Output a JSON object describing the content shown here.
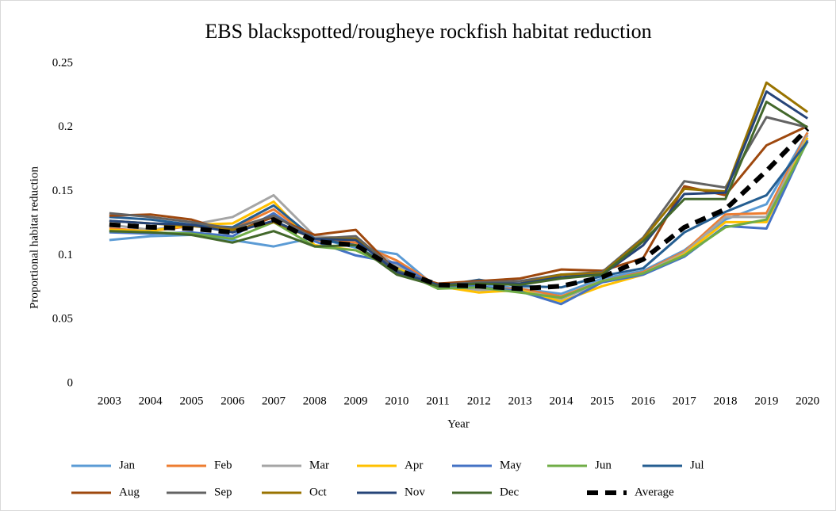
{
  "chart_data": {
    "type": "line",
    "title": "EBS blackspotted/rougheye rockfish habitat reduction",
    "x_label": "Year",
    "y_label": "Proportional habitat reduction",
    "categories": [
      "2003",
      "2004",
      "2005",
      "2006",
      "2007",
      "2008",
      "2009",
      "2010",
      "2011",
      "2012",
      "2013",
      "2014",
      "2015",
      "2016",
      "2017",
      "2018",
      "2019",
      "2020"
    ],
    "ylim": [
      0,
      0.25
    ],
    "yticks": [
      0,
      0.05,
      0.1,
      0.15,
      0.2,
      0.25
    ],
    "grid": false,
    "legend": "bottom",
    "series": [
      {
        "name": "Jan",
        "color": "#5b9bd5",
        "values": [
          0.112,
          0.115,
          0.116,
          0.112,
          0.107,
          0.114,
          0.106,
          0.101,
          0.074,
          0.078,
          0.074,
          0.07,
          0.082,
          0.088,
          0.104,
          0.128,
          0.14,
          0.196
        ]
      },
      {
        "name": "Feb",
        "color": "#ed7d31",
        "values": [
          0.121,
          0.119,
          0.123,
          0.121,
          0.136,
          0.112,
          0.11,
          0.096,
          0.076,
          0.074,
          0.074,
          0.068,
          0.08,
          0.087,
          0.103,
          0.132,
          0.133,
          0.196
        ]
      },
      {
        "name": "Mar",
        "color": "#a5a5a5",
        "values": [
          0.124,
          0.12,
          0.124,
          0.13,
          0.147,
          0.115,
          0.113,
          0.092,
          0.076,
          0.073,
          0.073,
          0.066,
          0.079,
          0.086,
          0.102,
          0.13,
          0.13,
          0.194
        ]
      },
      {
        "name": "Apr",
        "color": "#ffc000",
        "values": [
          0.12,
          0.119,
          0.124,
          0.125,
          0.142,
          0.108,
          0.104,
          0.09,
          0.076,
          0.071,
          0.073,
          0.064,
          0.076,
          0.085,
          0.101,
          0.126,
          0.126,
          0.192
        ]
      },
      {
        "name": "May",
        "color": "#4472c4",
        "values": [
          0.118,
          0.117,
          0.118,
          0.115,
          0.133,
          0.111,
          0.1,
          0.094,
          0.075,
          0.076,
          0.072,
          0.062,
          0.079,
          0.085,
          0.099,
          0.123,
          0.121,
          0.19
        ]
      },
      {
        "name": "Jun",
        "color": "#70ad47",
        "values": [
          0.119,
          0.118,
          0.117,
          0.113,
          0.126,
          0.107,
          0.104,
          0.089,
          0.074,
          0.075,
          0.071,
          0.067,
          0.08,
          0.086,
          0.1,
          0.122,
          0.128,
          0.189
        ]
      },
      {
        "name": "Jul",
        "color": "#255e91",
        "values": [
          0.13,
          0.128,
          0.124,
          0.122,
          0.139,
          0.113,
          0.108,
          0.087,
          0.076,
          0.081,
          0.076,
          0.075,
          0.084,
          0.09,
          0.118,
          0.134,
          0.147,
          0.189
        ]
      },
      {
        "name": "Aug",
        "color": "#9e480e",
        "values": [
          0.131,
          0.132,
          0.128,
          0.118,
          0.13,
          0.116,
          0.12,
          0.087,
          0.078,
          0.08,
          0.082,
          0.089,
          0.088,
          0.098,
          0.154,
          0.147,
          0.186,
          0.201
        ]
      },
      {
        "name": "Sep",
        "color": "#636363",
        "values": [
          0.133,
          0.13,
          0.126,
          0.121,
          0.131,
          0.113,
          0.115,
          0.088,
          0.077,
          0.079,
          0.08,
          0.085,
          0.087,
          0.114,
          0.158,
          0.153,
          0.208,
          0.2
        ]
      },
      {
        "name": "Oct",
        "color": "#997300",
        "values": [
          0.127,
          0.125,
          0.123,
          0.12,
          0.126,
          0.113,
          0.113,
          0.086,
          0.077,
          0.078,
          0.078,
          0.085,
          0.086,
          0.113,
          0.152,
          0.15,
          0.235,
          0.212
        ]
      },
      {
        "name": "Nov",
        "color": "#264478",
        "values": [
          0.127,
          0.125,
          0.124,
          0.118,
          0.127,
          0.113,
          0.112,
          0.087,
          0.077,
          0.078,
          0.078,
          0.083,
          0.085,
          0.108,
          0.148,
          0.149,
          0.228,
          0.207
        ]
      },
      {
        "name": "Dec",
        "color": "#43682b",
        "values": [
          0.119,
          0.118,
          0.116,
          0.11,
          0.119,
          0.107,
          0.108,
          0.085,
          0.076,
          0.078,
          0.077,
          0.082,
          0.085,
          0.111,
          0.144,
          0.144,
          0.22,
          0.2
        ]
      },
      {
        "name": "Average",
        "color": "#000000",
        "dashed": true,
        "values": [
          0.124,
          0.122,
          0.121,
          0.118,
          0.128,
          0.111,
          0.108,
          0.089,
          0.077,
          0.076,
          0.074,
          0.076,
          0.083,
          0.097,
          0.122,
          0.136,
          0.166,
          0.199
        ]
      }
    ]
  }
}
